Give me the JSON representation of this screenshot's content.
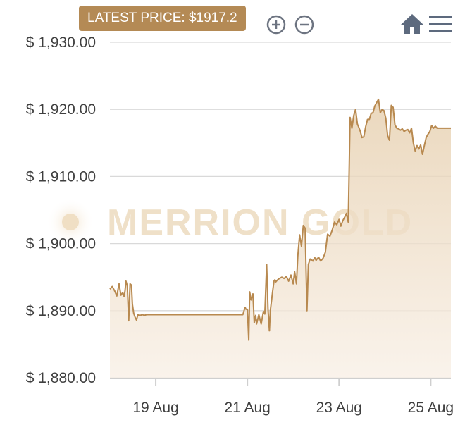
{
  "latest_price_label": "LATEST PRICE: $1917.2",
  "watermark": "MERRION GOLD",
  "toolbar": {
    "zoom_in_icon": "zoom-in-icon",
    "zoom_out_icon": "zoom-out-icon",
    "home_icon": "home-icon",
    "menu_icon": "menu-icon"
  },
  "colors": {
    "line": "#b8894f",
    "fill_top": "#e6cfae",
    "badge": "#b48a55",
    "grid": "#d9d9d9"
  },
  "chart_data": {
    "type": "area",
    "title": "",
    "xlabel": "",
    "ylabel": "",
    "ylim": [
      1880,
      1930
    ],
    "y_ticks": [
      1880,
      1890,
      1900,
      1910,
      1920,
      1930
    ],
    "y_tick_labels": [
      "$ 1,880.00",
      "$ 1,890.00",
      "$ 1,900.00",
      "$ 1,910.00",
      "$ 1,920.00",
      "$ 1,930.00"
    ],
    "x_ticks": [
      1,
      3,
      5,
      7
    ],
    "x_tick_labels": [
      "19 Aug",
      "21 Aug",
      "23 Aug",
      "25 Aug"
    ],
    "x_range": [
      0,
      7.44
    ],
    "grid": true,
    "x": [
      0.0,
      0.05,
      0.1,
      0.15,
      0.2,
      0.24,
      0.28,
      0.31,
      0.33,
      0.35,
      0.38,
      0.41,
      0.44,
      0.47,
      0.49,
      0.52,
      0.55,
      0.58,
      0.61,
      0.66,
      0.71,
      0.75,
      0.8,
      0.87,
      1.0,
      1.3,
      1.6,
      2.0,
      2.4,
      2.8,
      2.9,
      2.95,
      2.97,
      3.0,
      3.03,
      3.05,
      3.08,
      3.12,
      3.15,
      3.18,
      3.2,
      3.25,
      3.3,
      3.35,
      3.38,
      3.42,
      3.45,
      3.48,
      3.5,
      3.55,
      3.58,
      3.6,
      3.62,
      3.66,
      3.7,
      3.75,
      3.8,
      3.85,
      3.9,
      3.95,
      4.0,
      4.03,
      4.07,
      4.1,
      4.14,
      4.18,
      4.22,
      4.26,
      4.3,
      4.33,
      4.37,
      4.4,
      4.43,
      4.47,
      4.5,
      4.53,
      4.56,
      4.6,
      4.65,
      4.7,
      4.75,
      4.8,
      4.85,
      4.9,
      4.95,
      5.0,
      5.04,
      5.08,
      5.12,
      5.16,
      5.2,
      5.24,
      5.28,
      5.32,
      5.36,
      5.4,
      5.42,
      5.46,
      5.5,
      5.54,
      5.58,
      5.62,
      5.66,
      5.7,
      5.74,
      5.78,
      5.82,
      5.86,
      5.9,
      5.94,
      5.98,
      6.02,
      6.06,
      6.1,
      6.14,
      6.18,
      6.22,
      6.26,
      6.3,
      6.34,
      6.38,
      6.42,
      6.46,
      6.5,
      6.54,
      6.58,
      6.62,
      6.66,
      6.7,
      6.74,
      6.78,
      6.82,
      6.86,
      6.9,
      6.94,
      6.98,
      7.02,
      7.06,
      7.1,
      7.14,
      7.18,
      7.22,
      7.26,
      7.3,
      7.34,
      7.38,
      7.42,
      7.44
    ],
    "y": [
      1893.2,
      1893.6,
      1893.0,
      1892.2,
      1894.0,
      1892.3,
      1892.7,
      1892.1,
      1893.0,
      1894.4,
      1893.7,
      1888.5,
      1894.0,
      1893.8,
      1891.0,
      1889.6,
      1889.0,
      1888.6,
      1889.4,
      1889.3,
      1889.4,
      1889.3,
      1889.4,
      1889.4,
      1889.4,
      1889.4,
      1889.4,
      1889.4,
      1889.4,
      1889.4,
      1889.4,
      1890.5,
      1890.2,
      1890.2,
      1885.6,
      1892.8,
      1891.6,
      1892.5,
      1888.2,
      1889.3,
      1888.0,
      1889.4,
      1888.0,
      1889.9,
      1889.5,
      1896.9,
      1890.3,
      1887.0,
      1890.0,
      1892.8,
      1894.4,
      1894.6,
      1894.3,
      1894.6,
      1894.8,
      1895.0,
      1894.8,
      1895.1,
      1894.4,
      1895.3,
      1894.0,
      1895.8,
      1894.0,
      1898.1,
      1901.3,
      1899.6,
      1902.7,
      1902.3,
      1890.0,
      1896.9,
      1897.7,
      1897.6,
      1897.4,
      1897.9,
      1897.5,
      1897.8,
      1897.9,
      1897.4,
      1897.8,
      1898.7,
      1901.4,
      1901.1,
      1902.0,
      1903.2,
      1902.8,
      1903.6,
      1902.6,
      1903.4,
      1903.9,
      1904.5,
      1903.2,
      1918.8,
      1917.2,
      1919.1,
      1920.0,
      1917.8,
      1917.5,
      1916.8,
      1915.8,
      1915.9,
      1917.4,
      1918.5,
      1918.5,
      1919.4,
      1919.5,
      1920.5,
      1921.0,
      1921.5,
      1919.5,
      1920.0,
      1919.8,
      1918.7,
      1916.1,
      1915.4,
      1920.6,
      1920.3,
      1917.7,
      1917.2,
      1917.1,
      1916.9,
      1917.1,
      1916.7,
      1916.9,
      1917.0,
      1916.5,
      1917.2,
      1915.0,
      1913.8,
      1914.6,
      1914.1,
      1914.7,
      1913.3,
      1914.6,
      1915.8,
      1916.3,
      1916.7,
      1917.6,
      1917.2,
      1917.5,
      1917.2,
      1917.2,
      1917.2,
      1917.2,
      1917.2,
      1917.2,
      1917.2,
      1917.2,
      1917.2
    ]
  }
}
